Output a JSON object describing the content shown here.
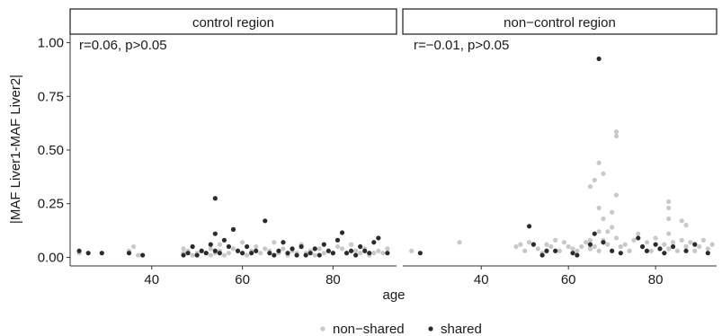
{
  "colors": {
    "non_shared": "#c8c8c8",
    "shared": "#2b2b2b",
    "axis": "#333333",
    "strip_border": "#1a1a1a"
  },
  "chart_data": {
    "type": "scatter",
    "xlabel": "age",
    "ylabel": "|MAF Liver1-MAF Liver2|",
    "xlim": [
      22,
      94
    ],
    "ylim": [
      -0.04,
      1.04
    ],
    "x_ticks": [
      40,
      60,
      80
    ],
    "y_ticks": [
      0.0,
      0.25,
      0.5,
      0.75,
      1.0
    ],
    "y_tick_labels": [
      "0.00",
      "0.25",
      "0.50",
      "0.75",
      "1.00"
    ],
    "legend": {
      "position": "bottom",
      "entries": [
        "non−shared",
        "shared"
      ]
    },
    "panels": [
      {
        "title": "control region",
        "annotation": "r=0.06, p>0.05",
        "series": [
          {
            "name": "non−shared",
            "points": [
              [
                24,
                0.02
              ],
              [
                35,
                0.03
              ],
              [
                36,
                0.05
              ],
              [
                37,
                0.01
              ],
              [
                47,
                0.02
              ],
              [
                47,
                0.04
              ],
              [
                48,
                0.03
              ],
              [
                49,
                0.01
              ],
              [
                50,
                0.02
              ],
              [
                51,
                0.03
              ],
              [
                52,
                0.02
              ],
              [
                53,
                0.01
              ],
              [
                53,
                0.04
              ],
              [
                54,
                0.02
              ],
              [
                55,
                0.03
              ],
              [
                55,
                0.06
              ],
              [
                56,
                0.01
              ],
              [
                57,
                0.02
              ],
              [
                58,
                0.04
              ],
              [
                59,
                0.03
              ],
              [
                60,
                0.02
              ],
              [
                60,
                0.07
              ],
              [
                61,
                0.01
              ],
              [
                62,
                0.03
              ],
              [
                63,
                0.05
              ],
              [
                64,
                0.02
              ],
              [
                65,
                0.04
              ],
              [
                66,
                0.03
              ],
              [
                67,
                0.07
              ],
              [
                68,
                0.02
              ],
              [
                69,
                0.04
              ],
              [
                70,
                0.01
              ],
              [
                71,
                0.03
              ],
              [
                72,
                0.02
              ],
              [
                73,
                0.06
              ],
              [
                74,
                0.02
              ],
              [
                75,
                0.03
              ],
              [
                76,
                0.01
              ],
              [
                77,
                0.04
              ],
              [
                78,
                0.02
              ],
              [
                79,
                0.03
              ],
              [
                80,
                0.02
              ],
              [
                81,
                0.05
              ],
              [
                82,
                0.04
              ],
              [
                83,
                0.02
              ],
              [
                84,
                0.06
              ],
              [
                85,
                0.03
              ],
              [
                86,
                0.02
              ],
              [
                87,
                0.04
              ],
              [
                88,
                0.01
              ],
              [
                89,
                0.02
              ],
              [
                90,
                0.03
              ],
              [
                91,
                0.02
              ],
              [
                92,
                0.04
              ]
            ]
          },
          {
            "name": "shared",
            "points": [
              [
                24,
                0.03
              ],
              [
                26,
                0.02
              ],
              [
                29,
                0.02
              ],
              [
                35,
                0.02
              ],
              [
                38,
                0.01
              ],
              [
                47,
                0.01
              ],
              [
                48,
                0.02
              ],
              [
                49,
                0.05
              ],
              [
                50,
                0.01
              ],
              [
                51,
                0.03
              ],
              [
                52,
                0.02
              ],
              [
                53,
                0.06
              ],
              [
                54,
                0.275
              ],
              [
                54,
                0.11
              ],
              [
                54,
                0.03
              ],
              [
                55,
                0.02
              ],
              [
                56,
                0.08
              ],
              [
                57,
                0.05
              ],
              [
                58,
                0.13
              ],
              [
                59,
                0.03
              ],
              [
                60,
                0.02
              ],
              [
                61,
                0.05
              ],
              [
                62,
                0.02
              ],
              [
                63,
                0.03
              ],
              [
                65,
                0.17
              ],
              [
                66,
                0.02
              ],
              [
                67,
                0.01
              ],
              [
                68,
                0.03
              ],
              [
                69,
                0.07
              ],
              [
                70,
                0.02
              ],
              [
                71,
                0.04
              ],
              [
                72,
                0.01
              ],
              [
                73,
                0.05
              ],
              [
                74,
                0.01
              ],
              [
                75,
                0.02
              ],
              [
                76,
                0.04
              ],
              [
                77,
                0.01
              ],
              [
                78,
                0.06
              ],
              [
                79,
                0.03
              ],
              [
                80,
                0.02
              ],
              [
                81,
                0.08
              ],
              [
                82,
                0.115
              ],
              [
                83,
                0.02
              ],
              [
                84,
                0.03
              ],
              [
                85,
                0.01
              ],
              [
                86,
                0.05
              ],
              [
                87,
                0.03
              ],
              [
                88,
                0.02
              ],
              [
                89,
                0.07
              ],
              [
                90,
                0.09
              ],
              [
                92,
                0.02
              ]
            ]
          }
        ]
      },
      {
        "title": "non−control region",
        "annotation": "r=−0.01, p>0.05",
        "series": [
          {
            "name": "non−shared",
            "points": [
              [
                24,
                0.03
              ],
              [
                35,
                0.07
              ],
              [
                48,
                0.05
              ],
              [
                49,
                0.06
              ],
              [
                50,
                0.03
              ],
              [
                51,
                0.07
              ],
              [
                52,
                0.06
              ],
              [
                53,
                0.04
              ],
              [
                54,
                0.02
              ],
              [
                55,
                0.06
              ],
              [
                56,
                0.05
              ],
              [
                57,
                0.08
              ],
              [
                58,
                0.03
              ],
              [
                59,
                0.07
              ],
              [
                60,
                0.05
              ],
              [
                61,
                0.04
              ],
              [
                62,
                0.03
              ],
              [
                63,
                0.05
              ],
              [
                64,
                0.07
              ],
              [
                65,
                0.33
              ],
              [
                65,
                0.08
              ],
              [
                65,
                0.04
              ],
              [
                66,
                0.36
              ],
              [
                66,
                0.05
              ],
              [
                67,
                0.44
              ],
              [
                67,
                0.23
              ],
              [
                67,
                0.12
              ],
              [
                67,
                0.03
              ],
              [
                68,
                0.39
              ],
              [
                68,
                0.18
              ],
              [
                68,
                0.08
              ],
              [
                69,
                0.12
              ],
              [
                69,
                0.06
              ],
              [
                70,
                0.21
              ],
              [
                70,
                0.14
              ],
              [
                71,
                0.585
              ],
              [
                71,
                0.565
              ],
              [
                71,
                0.29
              ],
              [
                71,
                0.09
              ],
              [
                72,
                0.05
              ],
              [
                73,
                0.06
              ],
              [
                74,
                0.03
              ],
              [
                75,
                0.08
              ],
              [
                76,
                0.11
              ],
              [
                77,
                0.05
              ],
              [
                78,
                0.07
              ],
              [
                79,
                0.03
              ],
              [
                80,
                0.09
              ],
              [
                81,
                0.04
              ],
              [
                82,
                0.06
              ],
              [
                83,
                0.26
              ],
              [
                83,
                0.23
              ],
              [
                83,
                0.18
              ],
              [
                83,
                0.11
              ],
              [
                83,
                0.04
              ],
              [
                84,
                0.07
              ],
              [
                85,
                0.03
              ],
              [
                86,
                0.17
              ],
              [
                86,
                0.08
              ],
              [
                87,
                0.15
              ],
              [
                87,
                0.05
              ],
              [
                88,
                0.07
              ],
              [
                89,
                0.03
              ],
              [
                90,
                0.05
              ],
              [
                91,
                0.08
              ],
              [
                92,
                0.04
              ],
              [
                93,
                0.06
              ]
            ]
          },
          {
            "name": "shared",
            "points": [
              [
                26,
                0.02
              ],
              [
                51,
                0.145
              ],
              [
                52,
                0.06
              ],
              [
                54,
                0.01
              ],
              [
                55,
                0.03
              ],
              [
                57,
                0.03
              ],
              [
                61,
                0.02
              ],
              [
                62,
                0.01
              ],
              [
                65,
                0.06
              ],
              [
                66,
                0.11
              ],
              [
                67,
                0.925
              ],
              [
                68,
                0.07
              ],
              [
                70,
                0.03
              ],
              [
                72,
                0.02
              ],
              [
                76,
                0.09
              ],
              [
                77,
                0.05
              ],
              [
                78,
                0.03
              ],
              [
                80,
                0.06
              ],
              [
                81,
                0.04
              ],
              [
                82,
                0.02
              ],
              [
                84,
                0.05
              ],
              [
                87,
                0.03
              ],
              [
                89,
                0.06
              ],
              [
                92,
                0.02
              ]
            ]
          }
        ]
      }
    ]
  }
}
